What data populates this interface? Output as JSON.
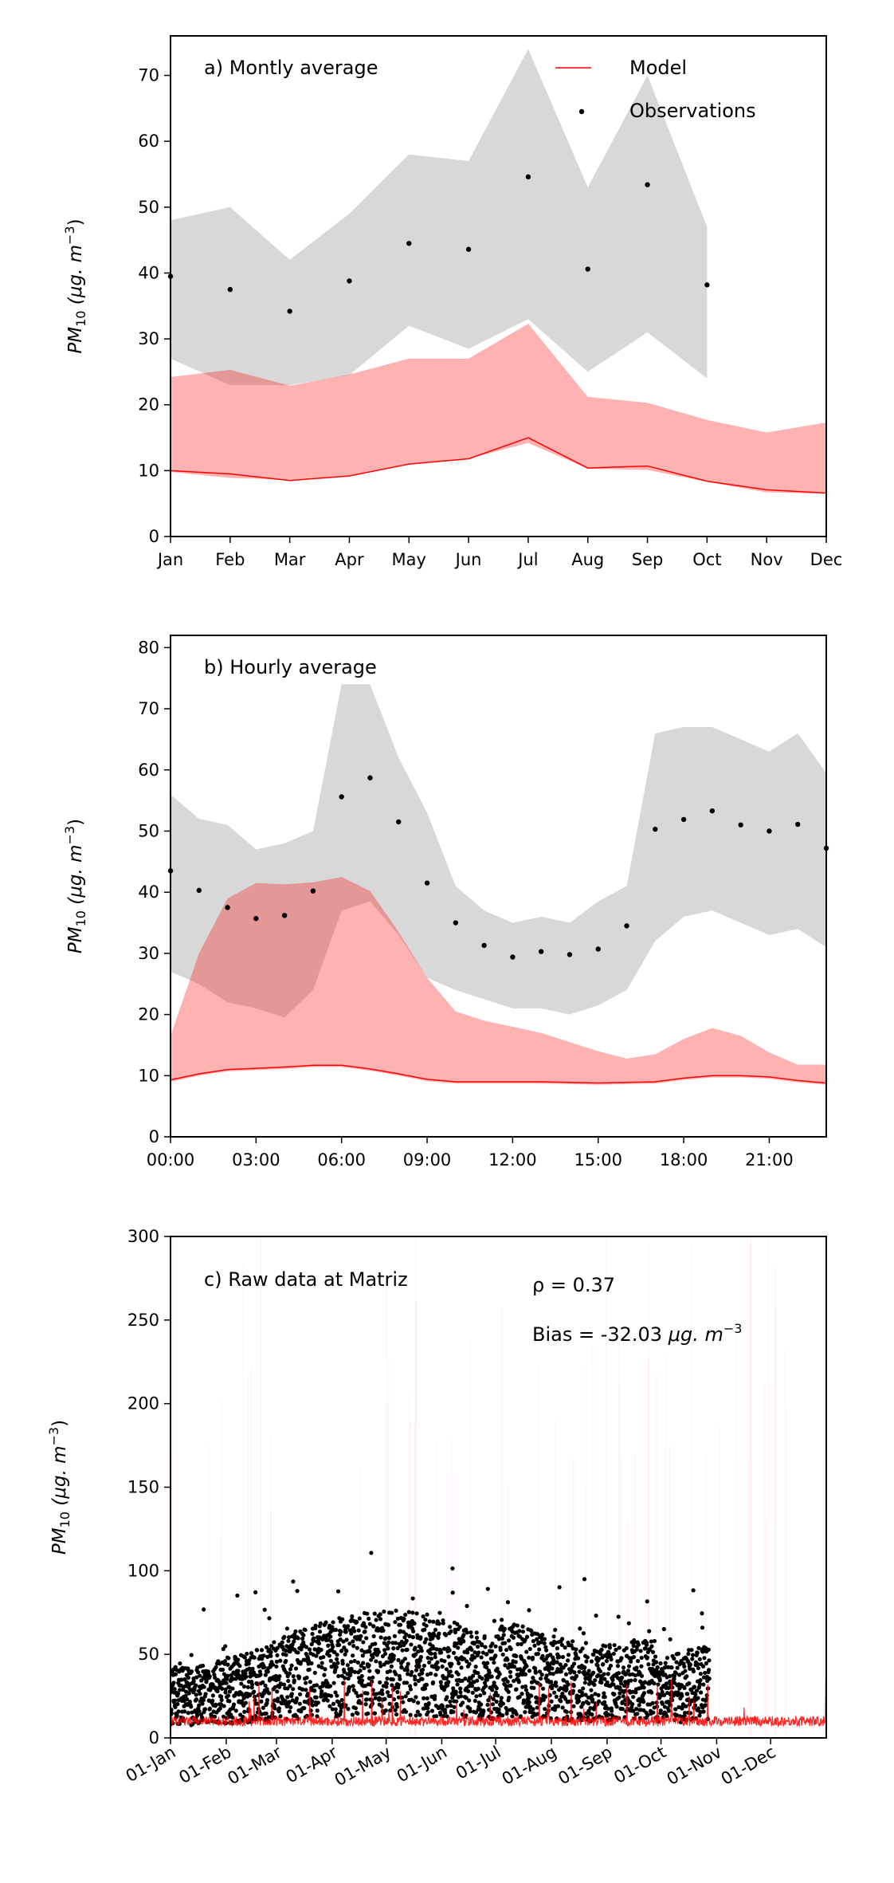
{
  "colors": {
    "model": "#ff0000",
    "model_band": "#fdb0b0",
    "obs": "#000000",
    "obs_band": "#d8d8d8"
  },
  "legend": {
    "model": "Model",
    "observations": "Observations",
    "placement": "top-right"
  },
  "ylabel": {
    "main": "PM",
    "sub": "10",
    "unit": " (μg. m",
    "exp": "−3",
    "close": ")"
  },
  "chart_data": [
    {
      "type": "line",
      "title": "a) Montly average",
      "categories": [
        "Jan",
        "Feb",
        "Mar",
        "Apr",
        "May",
        "Jun",
        "Jul",
        "Aug",
        "Sep",
        "Oct",
        "Nov",
        "Dec"
      ],
      "ylim": [
        0,
        76
      ],
      "yticks": [
        0,
        10,
        20,
        30,
        40,
        50,
        60,
        70
      ],
      "series": [
        {
          "name": "Observations",
          "kind": "scatter",
          "values": [
            39.5,
            37.5,
            34.2,
            38.8,
            44.5,
            43.6,
            54.6,
            40.6,
            53.4,
            38.2,
            null,
            null
          ],
          "band_upper": [
            48,
            50,
            42,
            49,
            58,
            57,
            74,
            53,
            70,
            47,
            null,
            null
          ],
          "band_lower": [
            27,
            23,
            23,
            24.5,
            32,
            28.5,
            33,
            25,
            31,
            24,
            null,
            null
          ]
        },
        {
          "name": "Model",
          "kind": "line",
          "values": [
            10,
            9.5,
            8.5,
            9.2,
            11,
            11.8,
            15,
            10.4,
            10.7,
            8.4,
            7.1,
            6.6
          ],
          "band_upper": [
            24.2,
            25.3,
            22.9,
            24.6,
            27,
            27,
            32.3,
            21.2,
            20.3,
            17.7,
            15.8,
            17.3
          ],
          "band_lower": [
            9.8,
            8.9,
            8.6,
            9.2,
            11,
            11.8,
            14.2,
            10.3,
            10.1,
            8.3,
            6.7,
            6.5
          ]
        }
      ]
    },
    {
      "type": "line",
      "title": "b) Hourly average",
      "x": [
        0,
        1,
        2,
        3,
        4,
        5,
        6,
        7,
        8,
        9,
        10,
        11,
        12,
        13,
        14,
        15,
        16,
        17,
        18,
        19,
        20,
        21,
        22,
        23
      ],
      "xticks": [
        "00:00",
        "03:00",
        "06:00",
        "09:00",
        "12:00",
        "15:00",
        "18:00",
        "21:00"
      ],
      "ylim": [
        0,
        82
      ],
      "yticks": [
        0,
        10,
        20,
        30,
        40,
        50,
        60,
        70,
        80
      ],
      "series": [
        {
          "name": "Observations",
          "kind": "scatter",
          "values": [
            43.5,
            40.3,
            37.5,
            35.7,
            36.2,
            40.2,
            55.6,
            58.7,
            51.5,
            41.5,
            35,
            31.3,
            29.4,
            30.3,
            29.8,
            30.7,
            34.5,
            50.3,
            51.9,
            53.3,
            51,
            50,
            51.1,
            47.2
          ],
          "band_upper": [
            56,
            52,
            51,
            47,
            48,
            50,
            74,
            74,
            62,
            53,
            41,
            37,
            35,
            36,
            35,
            38.5,
            41,
            66,
            67,
            67,
            65,
            63,
            66,
            59.5
          ],
          "band_lower": [
            27,
            25,
            22,
            21,
            19.5,
            24,
            37,
            38.5,
            33,
            26,
            24,
            22.5,
            21,
            21,
            20,
            21.5,
            24,
            32,
            36,
            37,
            35,
            33,
            34,
            31
          ]
        },
        {
          "name": "Model",
          "kind": "line",
          "values": [
            9.3,
            10.3,
            11,
            11.2,
            11.4,
            11.7,
            11.7,
            11.1,
            10.3,
            9.4,
            9,
            9,
            9,
            9,
            8.9,
            8.8,
            8.9,
            9,
            9.6,
            10,
            10,
            9.8,
            9.2,
            8.8
          ],
          "band_upper": [
            16.5,
            30,
            39,
            41.5,
            41.3,
            41.6,
            42.5,
            40.2,
            33.5,
            26,
            20.5,
            19,
            18,
            17,
            15.5,
            14,
            12.8,
            13.5,
            16,
            17.8,
            16.5,
            13.8,
            11.8,
            11.8
          ],
          "band_lower": [
            9,
            10,
            10.7,
            10.9,
            11.1,
            11.4,
            11.4,
            10.8,
            10,
            9.1,
            8.7,
            8.7,
            8.7,
            8.7,
            8.6,
            8.5,
            8.6,
            8.7,
            9.3,
            9.7,
            9.7,
            9.5,
            8.9,
            8.5
          ]
        }
      ]
    },
    {
      "type": "scatter",
      "title": "c) Raw data at Matriz",
      "xlim": [
        "01-Jan",
        "31-Dec"
      ],
      "xticks": [
        "01-Jan",
        "01-Feb",
        "01-Mar",
        "01-Apr",
        "01-May",
        "01-Jun",
        "01-Jul",
        "01-Aug",
        "01-Sep",
        "01-Oct",
        "01-Nov",
        "01-Dec"
      ],
      "ylim": [
        0,
        300
      ],
      "yticks": [
        0,
        50,
        100,
        150,
        200,
        250,
        300
      ],
      "observations_end": "28-Oct",
      "annotations": {
        "rho": "ρ = 0.37",
        "bias": "Bias = -32.03 ",
        "bias_unit": "μg. m",
        "bias_exp": "−3"
      }
    }
  ]
}
